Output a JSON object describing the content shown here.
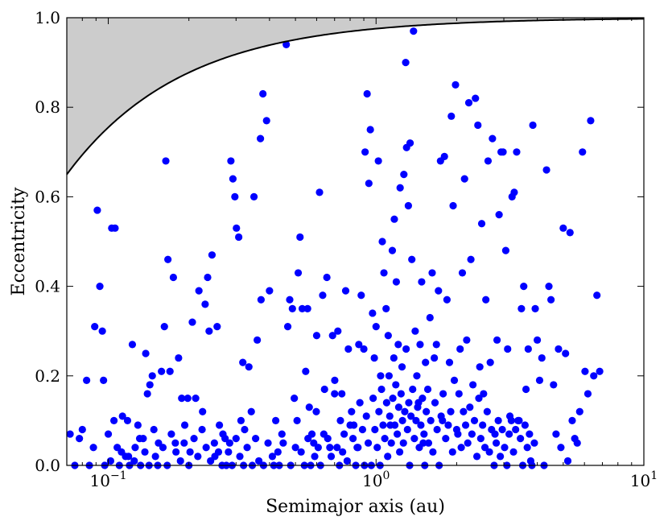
{
  "chart_data": {
    "type": "scatter",
    "xlabel": "Semimajor axis (au)",
    "ylabel": "Eccentricity",
    "xscale": "log",
    "xlim": [
      0.07,
      10
    ],
    "ylim": [
      0.0,
      1.0
    ],
    "x_ticks": [
      {
        "value": 0.1,
        "base": "10",
        "exp": "−1"
      },
      {
        "value": 1,
        "base": "10",
        "exp": "0"
      },
      {
        "value": 10,
        "base": "10",
        "exp": "1"
      }
    ],
    "y_ticks": [
      "0.0",
      "0.2",
      "0.4",
      "0.6",
      "0.8",
      "1.0"
    ],
    "grid": false,
    "marker_color": "#0000ff",
    "boundary_line_color": "#000000",
    "excluded_region_color": "#cccccc",
    "boundary_curve": "e = 1 − 0.0245 / a (a in au)",
    "points": [
      [
        0.072,
        0.07
      ],
      [
        0.075,
        0.0
      ],
      [
        0.078,
        0.06
      ],
      [
        0.08,
        0.08
      ],
      [
        0.083,
        0.19
      ],
      [
        0.088,
        0.04
      ],
      [
        0.089,
        0.31
      ],
      [
        0.091,
        0.57
      ],
      [
        0.093,
        0.4
      ],
      [
        0.095,
        0.3
      ],
      [
        0.096,
        0.19
      ],
      [
        0.1,
        0.07
      ],
      [
        0.103,
        0.53
      ],
      [
        0.105,
        0.1
      ],
      [
        0.106,
        0.53
      ],
      [
        0.108,
        0.04
      ],
      [
        0.11,
        0.0
      ],
      [
        0.113,
        0.11
      ],
      [
        0.116,
        0.02
      ],
      [
        0.118,
        0.1
      ],
      [
        0.12,
        0.0
      ],
      [
        0.123,
        0.27
      ],
      [
        0.126,
        0.04
      ],
      [
        0.129,
        0.09
      ],
      [
        0.132,
        0.0
      ],
      [
        0.135,
        0.06
      ],
      [
        0.138,
        0.25
      ],
      [
        0.14,
        0.16
      ],
      [
        0.143,
        0.18
      ],
      [
        0.146,
        0.2
      ],
      [
        0.15,
        0.02
      ],
      [
        0.154,
        0.05
      ],
      [
        0.158,
        0.21
      ],
      [
        0.162,
        0.31
      ],
      [
        0.164,
        0.68
      ],
      [
        0.167,
        0.46
      ],
      [
        0.17,
        0.21
      ],
      [
        0.175,
        0.42
      ],
      [
        0.178,
        0.05
      ],
      [
        0.183,
        0.24
      ],
      [
        0.188,
        0.15
      ],
      [
        0.193,
        0.09
      ],
      [
        0.198,
        0.15
      ],
      [
        0.202,
        0.03
      ],
      [
        0.206,
        0.32
      ],
      [
        0.212,
        0.15
      ],
      [
        0.218,
        0.39
      ],
      [
        0.225,
        0.12
      ],
      [
        0.23,
        0.36
      ],
      [
        0.235,
        0.42
      ],
      [
        0.238,
        0.3
      ],
      [
        0.244,
        0.47
      ],
      [
        0.25,
        0.02
      ],
      [
        0.255,
        0.31
      ],
      [
        0.26,
        0.09
      ],
      [
        0.268,
        0.07
      ],
      [
        0.276,
        0.0
      ],
      [
        0.284,
        0.05
      ],
      [
        0.287,
        0.68
      ],
      [
        0.292,
        0.64
      ],
      [
        0.297,
        0.6
      ],
      [
        0.301,
        0.53
      ],
      [
        0.307,
        0.51
      ],
      [
        0.313,
        0.1
      ],
      [
        0.318,
        0.23
      ],
      [
        0.323,
        0.08
      ],
      [
        0.335,
        0.22
      ],
      [
        0.342,
        0.12
      ],
      [
        0.35,
        0.6
      ],
      [
        0.36,
        0.28
      ],
      [
        0.37,
        0.73
      ],
      [
        0.372,
        0.37
      ],
      [
        0.378,
        0.83
      ],
      [
        0.39,
        0.77
      ],
      [
        0.4,
        0.39
      ],
      [
        0.41,
        0.02
      ],
      [
        0.422,
        0.1
      ],
      [
        0.435,
        0.0
      ],
      [
        0.45,
        0.05
      ],
      [
        0.462,
        0.94
      ],
      [
        0.468,
        0.31
      ],
      [
        0.476,
        0.37
      ],
      [
        0.487,
        0.35
      ],
      [
        0.5,
        0.04
      ],
      [
        0.512,
        0.43
      ],
      [
        0.52,
        0.51
      ],
      [
        0.53,
        0.35
      ],
      [
        0.546,
        0.21
      ],
      [
        0.555,
        0.35
      ],
      [
        0.563,
        0.13
      ],
      [
        0.576,
        0.07
      ],
      [
        0.59,
        0.02
      ],
      [
        0.6,
        0.29
      ],
      [
        0.615,
        0.61
      ],
      [
        0.632,
        0.38
      ],
      [
        0.642,
        0.17
      ],
      [
        0.655,
        0.42
      ],
      [
        0.672,
        0.04
      ],
      [
        0.688,
        0.29
      ],
      [
        0.701,
        0.19
      ],
      [
        0.72,
        0.3
      ],
      [
        0.736,
        0.1
      ],
      [
        0.75,
        0.03
      ],
      [
        0.77,
        0.39
      ],
      [
        0.788,
        0.26
      ],
      [
        0.81,
        0.12
      ],
      [
        0.826,
        0.09
      ],
      [
        0.85,
        0.04
      ],
      [
        0.862,
        0.27
      ],
      [
        0.88,
        0.38
      ],
      [
        0.9,
        0.26
      ],
      [
        0.91,
        0.7
      ],
      [
        0.926,
        0.83
      ],
      [
        0.94,
        0.63
      ],
      [
        0.952,
        0.75
      ],
      [
        0.97,
        0.34
      ],
      [
        0.985,
        0.24
      ],
      [
        1.0,
        0.31
      ],
      [
        1.02,
        0.68
      ],
      [
        1.04,
        0.2
      ],
      [
        1.055,
        0.5
      ],
      [
        1.07,
        0.43
      ],
      [
        1.09,
        0.35
      ],
      [
        1.11,
        0.29
      ],
      [
        1.13,
        0.09
      ],
      [
        1.15,
        0.48
      ],
      [
        1.17,
        0.55
      ],
      [
        1.19,
        0.41
      ],
      [
        1.21,
        0.27
      ],
      [
        1.23,
        0.62
      ],
      [
        1.25,
        0.22
      ],
      [
        1.27,
        0.65
      ],
      [
        1.29,
        0.9
      ],
      [
        1.3,
        0.71
      ],
      [
        1.32,
        0.58
      ],
      [
        1.34,
        0.72
      ],
      [
        1.36,
        0.46
      ],
      [
        1.38,
        0.97
      ],
      [
        1.4,
        0.3
      ],
      [
        1.42,
        0.2
      ],
      [
        1.44,
        0.14
      ],
      [
        1.46,
        0.27
      ],
      [
        1.48,
        0.41
      ],
      [
        1.5,
        0.05
      ],
      [
        1.53,
        0.23
      ],
      [
        1.56,
        0.17
      ],
      [
        1.59,
        0.33
      ],
      [
        1.62,
        0.43
      ],
      [
        1.65,
        0.24
      ],
      [
        1.68,
        0.27
      ],
      [
        1.71,
        0.39
      ],
      [
        1.74,
        0.68
      ],
      [
        1.77,
        0.1
      ],
      [
        1.8,
        0.69
      ],
      [
        1.84,
        0.37
      ],
      [
        1.88,
        0.23
      ],
      [
        1.91,
        0.78
      ],
      [
        1.94,
        0.58
      ],
      [
        1.98,
        0.85
      ],
      [
        2.02,
        0.07
      ],
      [
        2.06,
        0.26
      ],
      [
        2.1,
        0.43
      ],
      [
        2.14,
        0.64
      ],
      [
        2.18,
        0.28
      ],
      [
        2.22,
        0.81
      ],
      [
        2.26,
        0.46
      ],
      [
        2.3,
        0.18
      ],
      [
        2.35,
        0.82
      ],
      [
        2.4,
        0.76
      ],
      [
        2.44,
        0.22
      ],
      [
        2.48,
        0.54
      ],
      [
        2.52,
        0.16
      ],
      [
        2.57,
        0.37
      ],
      [
        2.62,
        0.68
      ],
      [
        2.67,
        0.23
      ],
      [
        2.72,
        0.73
      ],
      [
        2.78,
        0.07
      ],
      [
        2.83,
        0.28
      ],
      [
        2.88,
        0.56
      ],
      [
        2.93,
        0.7
      ],
      [
        2.98,
        0.7
      ],
      [
        3.05,
        0.48
      ],
      [
        3.1,
        0.26
      ],
      [
        3.16,
        0.11
      ],
      [
        3.22,
        0.6
      ],
      [
        3.28,
        0.61
      ],
      [
        3.35,
        0.7
      ],
      [
        3.42,
        0.1
      ],
      [
        3.49,
        0.35
      ],
      [
        3.56,
        0.4
      ],
      [
        3.63,
        0.17
      ],
      [
        3.7,
        0.26
      ],
      [
        3.78,
        0.01
      ],
      [
        3.85,
        0.76
      ],
      [
        3.93,
        0.35
      ],
      [
        4.0,
        0.28
      ],
      [
        4.08,
        0.19
      ],
      [
        4.16,
        0.24
      ],
      [
        4.24,
        0.0
      ],
      [
        4.33,
        0.66
      ],
      [
        4.42,
        0.4
      ],
      [
        4.5,
        0.37
      ],
      [
        4.6,
        0.18
      ],
      [
        4.7,
        0.07
      ],
      [
        4.8,
        0.26
      ],
      [
        4.9,
        0.04
      ],
      [
        5.0,
        0.53
      ],
      [
        5.1,
        0.25
      ],
      [
        5.2,
        0.01
      ],
      [
        5.3,
        0.52
      ],
      [
        5.4,
        0.1
      ],
      [
        5.52,
        0.06
      ],
      [
        5.64,
        0.05
      ],
      [
        5.76,
        0.12
      ],
      [
        5.9,
        0.7
      ],
      [
        6.03,
        0.21
      ],
      [
        6.18,
        0.16
      ],
      [
        6.33,
        0.77
      ],
      [
        6.5,
        0.2
      ],
      [
        6.68,
        0.38
      ],
      [
        6.84,
        0.21
      ],
      [
        0.085,
        0.0
      ],
      [
        0.097,
        0.0
      ],
      [
        0.102,
        0.01
      ],
      [
        0.112,
        0.03
      ],
      [
        0.119,
        0.02
      ],
      [
        0.125,
        0.01
      ],
      [
        0.131,
        0.06
      ],
      [
        0.137,
        0.03
      ],
      [
        0.142,
        0.0
      ],
      [
        0.148,
        0.08
      ],
      [
        0.153,
        0.0
      ],
      [
        0.16,
        0.04
      ],
      [
        0.166,
        0.0
      ],
      [
        0.172,
        0.07
      ],
      [
        0.179,
        0.03
      ],
      [
        0.186,
        0.01
      ],
      [
        0.192,
        0.05
      ],
      [
        0.2,
        0.0
      ],
      [
        0.209,
        0.06
      ],
      [
        0.216,
        0.02
      ],
      [
        0.224,
        0.08
      ],
      [
        0.232,
        0.04
      ],
      [
        0.241,
        0.01
      ],
      [
        0.249,
        0.05
      ],
      [
        0.258,
        0.03
      ],
      [
        0.266,
        0.0
      ],
      [
        0.273,
        0.06
      ],
      [
        0.281,
        0.03
      ],
      [
        0.29,
        0.0
      ],
      [
        0.3,
        0.06
      ],
      [
        0.31,
        0.02
      ],
      [
        0.32,
        0.0
      ],
      [
        0.33,
        0.04
      ],
      [
        0.345,
        0.0
      ],
      [
        0.355,
        0.06
      ],
      [
        0.365,
        0.01
      ],
      [
        0.38,
        0.0
      ],
      [
        0.395,
        0.05
      ],
      [
        0.415,
        0.0
      ],
      [
        0.43,
        0.03
      ],
      [
        0.445,
        0.07
      ],
      [
        0.48,
        0.0
      ],
      [
        0.495,
        0.15
      ],
      [
        0.507,
        0.1
      ],
      [
        0.525,
        0.03
      ],
      [
        0.54,
        0.0
      ],
      [
        0.557,
        0.06
      ],
      [
        0.57,
        0.0
      ],
      [
        0.585,
        0.05
      ],
      [
        0.598,
        0.12
      ],
      [
        0.608,
        0.04
      ],
      [
        0.62,
        0.0
      ],
      [
        0.638,
        0.07
      ],
      [
        0.66,
        0.06
      ],
      [
        0.68,
        0.02
      ],
      [
        0.7,
        0.16
      ],
      [
        0.715,
        0.04
      ],
      [
        0.73,
        0.0
      ],
      [
        0.745,
        0.16
      ],
      [
        0.76,
        0.07
      ],
      [
        0.78,
        0.01
      ],
      [
        0.8,
        0.09
      ],
      [
        0.82,
        0.06
      ],
      [
        0.84,
        0.0
      ],
      [
        0.856,
        0.04
      ],
      [
        0.87,
        0.14
      ],
      [
        0.89,
        0.08
      ],
      [
        0.905,
        0.0
      ],
      [
        0.92,
        0.11
      ],
      [
        0.935,
        0.05
      ],
      [
        0.96,
        0.0
      ],
      [
        0.975,
        0.15
      ],
      [
        0.99,
        0.08
      ],
      [
        1.01,
        0.04
      ],
      [
        1.025,
        0.12
      ],
      [
        1.035,
        0.0
      ],
      [
        1.048,
        0.17
      ],
      [
        1.062,
        0.09
      ],
      [
        1.078,
        0.06
      ],
      [
        1.095,
        0.14
      ],
      [
        1.105,
        0.02
      ],
      [
        1.118,
        0.2
      ],
      [
        1.125,
        0.11
      ],
      [
        1.14,
        0.05
      ],
      [
        1.155,
        0.15
      ],
      [
        1.165,
        0.24
      ],
      [
        1.175,
        0.09
      ],
      [
        1.185,
        0.18
      ],
      [
        1.2,
        0.07
      ],
      [
        1.215,
        0.13
      ],
      [
        1.225,
        0.03
      ],
      [
        1.24,
        0.16
      ],
      [
        1.255,
        0.1
      ],
      [
        1.265,
        0.05
      ],
      [
        1.28,
        0.12
      ],
      [
        1.295,
        0.26
      ],
      [
        1.31,
        0.08
      ],
      [
        1.325,
        0.14
      ],
      [
        1.335,
        0.0
      ],
      [
        1.35,
        0.11
      ],
      [
        1.37,
        0.17
      ],
      [
        1.39,
        0.06
      ],
      [
        1.41,
        0.1
      ],
      [
        1.43,
        0.13
      ],
      [
        1.45,
        0.04
      ],
      [
        1.47,
        0.09
      ],
      [
        1.49,
        0.15
      ],
      [
        1.51,
        0.07
      ],
      [
        1.52,
        0.0
      ],
      [
        1.54,
        0.12
      ],
      [
        1.57,
        0.05
      ],
      [
        1.6,
        0.1
      ],
      [
        1.63,
        0.03
      ],
      [
        1.66,
        0.14
      ],
      [
        1.69,
        0.08
      ],
      [
        1.72,
        0.0
      ],
      [
        1.75,
        0.11
      ],
      [
        1.78,
        0.16
      ],
      [
        1.82,
        0.06
      ],
      [
        1.86,
        0.09
      ],
      [
        1.9,
        0.12
      ],
      [
        1.93,
        0.03
      ],
      [
        1.96,
        0.19
      ],
      [
        2.0,
        0.08
      ],
      [
        2.04,
        0.16
      ],
      [
        2.08,
        0.04
      ],
      [
        2.12,
        0.12
      ],
      [
        2.16,
        0.09
      ],
      [
        2.2,
        0.05
      ],
      [
        2.24,
        0.13
      ],
      [
        2.28,
        0.07
      ],
      [
        2.33,
        0.1
      ],
      [
        2.38,
        0.02
      ],
      [
        2.42,
        0.15
      ],
      [
        2.46,
        0.06
      ],
      [
        2.5,
        0.09
      ],
      [
        2.55,
        0.04
      ],
      [
        2.6,
        0.12
      ],
      [
        2.65,
        0.03
      ],
      [
        2.7,
        0.08
      ],
      [
        2.76,
        0.0
      ],
      [
        2.81,
        0.05
      ],
      [
        2.86,
        0.1
      ],
      [
        2.91,
        0.02
      ],
      [
        2.96,
        0.08
      ],
      [
        3.02,
        0.04
      ],
      [
        3.08,
        0.0
      ],
      [
        3.14,
        0.07
      ],
      [
        3.2,
        0.1
      ],
      [
        3.26,
        0.03
      ],
      [
        3.32,
        0.08
      ],
      [
        3.39,
        0.1
      ],
      [
        3.46,
        0.06
      ],
      [
        3.53,
        0.0
      ],
      [
        3.6,
        0.09
      ],
      [
        3.67,
        0.04
      ],
      [
        3.74,
        0.07
      ],
      [
        3.82,
        0.0
      ],
      [
        3.9,
        0.05
      ]
    ]
  }
}
